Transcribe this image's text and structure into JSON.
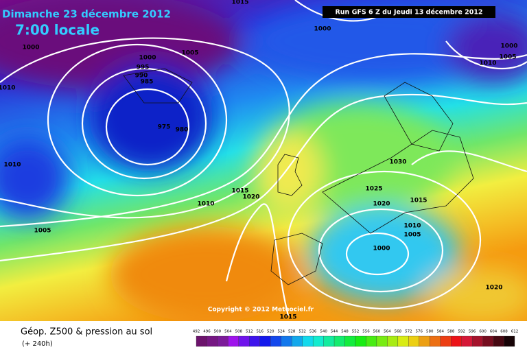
{
  "header": {
    "date": "Dimanche 23 décembre 2012",
    "time": "7:00 locale",
    "run": "Run GFS 6 Z du Jeudi 13 décembre 2012"
  },
  "copyright": "Copyright © 2012 Meteociel.fr",
  "footer": {
    "title": "Géop. Z500 & pression au sol",
    "lead": "(+ 240h)"
  },
  "isobar_labels": [
    1015,
    1000,
    1000,
    1005,
    1000,
    995,
    990,
    985,
    1010,
    975,
    980,
    1010,
    1030,
    1015,
    1020,
    1010,
    1025,
    1020,
    1015,
    1010,
    1005,
    1005,
    1000,
    1020,
    1015,
    1010,
    1005,
    1000
  ],
  "color_scale": [
    492,
    496,
    500,
    504,
    508,
    512,
    516,
    520,
    524,
    528,
    532,
    536,
    540,
    544,
    548,
    552,
    556,
    560,
    564,
    568,
    572,
    576,
    580,
    584,
    588,
    592,
    596,
    600,
    604,
    608,
    612
  ]
}
